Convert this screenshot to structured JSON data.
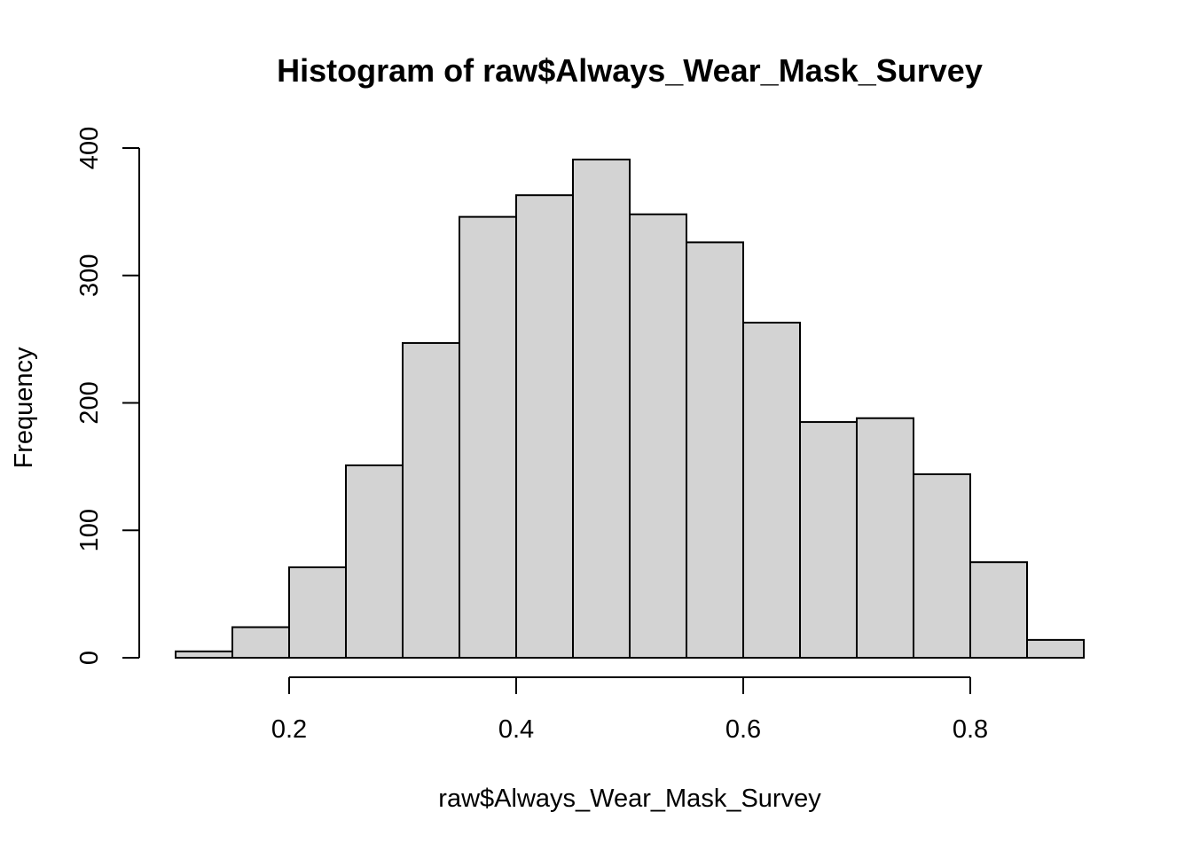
{
  "chart_data": {
    "type": "bar",
    "title": "Histogram of raw$Always_Wear_Mask_Survey",
    "xlabel": "raw$Always_Wear_Mask_Survey",
    "ylabel": "Frequency",
    "bins": [
      {
        "x0": 0.1,
        "x1": 0.15,
        "count": 5
      },
      {
        "x0": 0.15,
        "x1": 0.2,
        "count": 24
      },
      {
        "x0": 0.2,
        "x1": 0.25,
        "count": 71
      },
      {
        "x0": 0.25,
        "x1": 0.3,
        "count": 151
      },
      {
        "x0": 0.3,
        "x1": 0.35,
        "count": 247
      },
      {
        "x0": 0.35,
        "x1": 0.4,
        "count": 346
      },
      {
        "x0": 0.4,
        "x1": 0.45,
        "count": 363
      },
      {
        "x0": 0.45,
        "x1": 0.5,
        "count": 391
      },
      {
        "x0": 0.5,
        "x1": 0.55,
        "count": 348
      },
      {
        "x0": 0.55,
        "x1": 0.6,
        "count": 326
      },
      {
        "x0": 0.6,
        "x1": 0.65,
        "count": 263
      },
      {
        "x0": 0.65,
        "x1": 0.7,
        "count": 185
      },
      {
        "x0": 0.7,
        "x1": 0.75,
        "count": 188
      },
      {
        "x0": 0.75,
        "x1": 0.8,
        "count": 144
      },
      {
        "x0": 0.8,
        "x1": 0.85,
        "count": 75
      },
      {
        "x0": 0.85,
        "x1": 0.9,
        "count": 14
      }
    ],
    "xticks": [
      0.2,
      0.4,
      0.6,
      0.8
    ],
    "xtick_labels": [
      "0.2",
      "0.4",
      "0.6",
      "0.8"
    ],
    "yticks": [
      0,
      100,
      200,
      300,
      400
    ],
    "ytick_labels": [
      "0",
      "100",
      "200",
      "300",
      "400"
    ],
    "xlim": [
      0.1,
      0.9
    ],
    "ylim": [
      0,
      400
    ],
    "grid": false,
    "bar_fill": "#d3d3d3",
    "bar_stroke": "#000000"
  }
}
